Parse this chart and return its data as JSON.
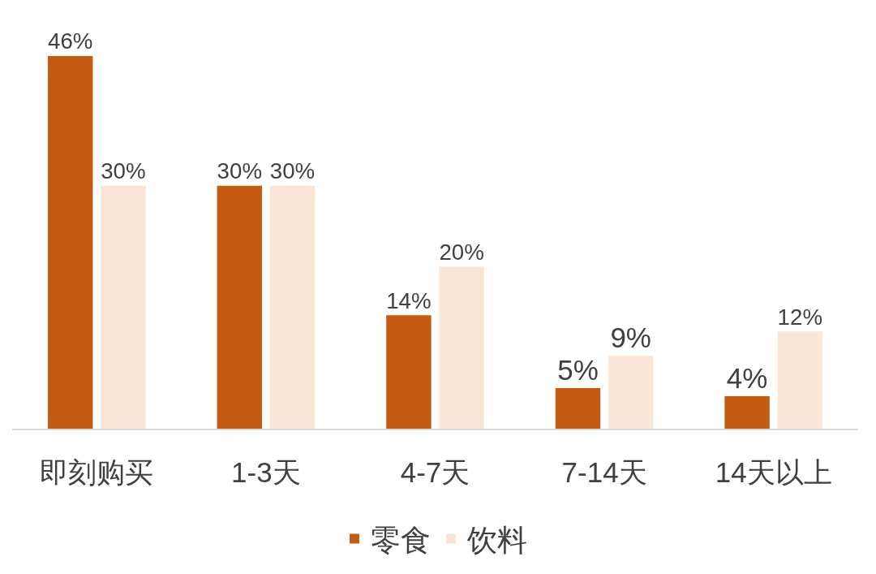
{
  "chart_data": {
    "type": "bar",
    "categories": [
      "即刻购买",
      "1-3天",
      "4-7天",
      "7-14天",
      "14天以上"
    ],
    "series": [
      {
        "name": "零食",
        "color": "#c55a11",
        "values": [
          46,
          30,
          14,
          5,
          4
        ],
        "value_labels": [
          "46%",
          "30%",
          "14%",
          "5%",
          "4%"
        ]
      },
      {
        "name": "饮料",
        "color": "#fbe5d6",
        "values": [
          30,
          30,
          20,
          9,
          12
        ],
        "value_labels": [
          "30%",
          "30%",
          "20%",
          "9%",
          "12%"
        ]
      }
    ],
    "tick_labels": "x",
    "legend": "bottom"
  }
}
